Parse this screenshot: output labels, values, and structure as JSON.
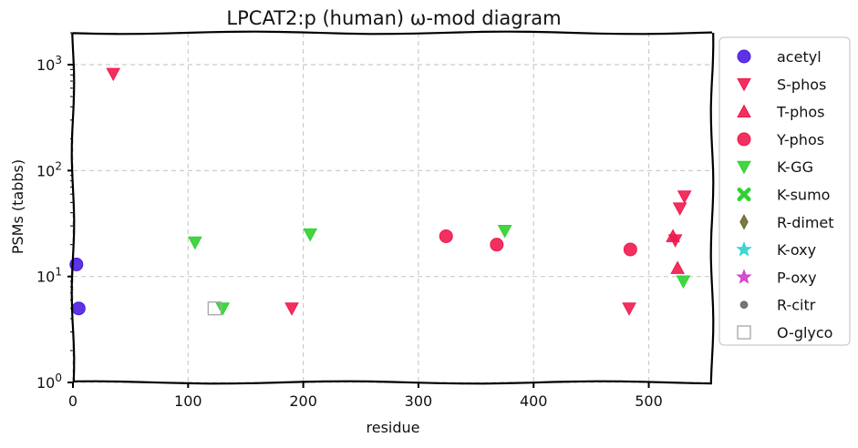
{
  "chart_data": {
    "type": "scatter",
    "title": "LPCAT2:p (human) ω-mod diagram",
    "xlabel": "residue",
    "ylabel": "PSMs (tabbs)",
    "xlim": [
      0,
      555
    ],
    "ylim": [
      1,
      2000
    ],
    "yscale": "log",
    "xticks": [
      0,
      100,
      200,
      300,
      400,
      500
    ],
    "yticks": [
      1,
      10,
      100,
      1000
    ],
    "ytick_labels": [
      {
        "base": "10",
        "exp": "0"
      },
      {
        "base": "10",
        "exp": "1"
      },
      {
        "base": "10",
        "exp": "2"
      },
      {
        "base": "10",
        "exp": "3"
      }
    ],
    "grid": true,
    "legend_position": "outside-right",
    "series": [
      {
        "name": "acetyl",
        "marker": "circle",
        "color": "#4b1de0",
        "points": [
          [
            3,
            13
          ],
          [
            5,
            5
          ]
        ]
      },
      {
        "name": "S-phos",
        "marker": "triangle-down",
        "color": "#f0194f",
        "points": [
          [
            35,
            820
          ],
          [
            190,
            5
          ],
          [
            483,
            5
          ],
          [
            523,
            22
          ],
          [
            527,
            44
          ],
          [
            531,
            57
          ]
        ]
      },
      {
        "name": "T-phos",
        "marker": "triangle-up",
        "color": "#f0194f",
        "points": [
          [
            521,
            24
          ],
          [
            525,
            12
          ]
        ]
      },
      {
        "name": "Y-phos",
        "marker": "circle",
        "color": "#f0194f",
        "points": [
          [
            324,
            24
          ],
          [
            368,
            20
          ],
          [
            484,
            18
          ]
        ]
      },
      {
        "name": "K-GG",
        "marker": "triangle-down",
        "color": "#2fd12f",
        "points": [
          [
            106,
            21
          ],
          [
            130,
            5
          ],
          [
            206,
            25
          ],
          [
            375,
            27
          ],
          [
            530,
            9
          ]
        ]
      },
      {
        "name": "K-sumo",
        "marker": "x",
        "color": "#2fd12f",
        "points": []
      },
      {
        "name": "R-dimet",
        "marker": "diamond",
        "color": "#6b6a2e",
        "points": []
      },
      {
        "name": "K-oxy",
        "marker": "star",
        "color": "#2ed1d1",
        "points": []
      },
      {
        "name": "P-oxy",
        "marker": "star",
        "color": "#d13ad1",
        "points": []
      },
      {
        "name": "R-citr",
        "marker": "dot",
        "color": "#666666",
        "points": []
      },
      {
        "name": "O-glyco",
        "marker": "square-open",
        "color": "#aaaaaa",
        "points": [
          [
            123,
            5
          ]
        ]
      }
    ]
  }
}
